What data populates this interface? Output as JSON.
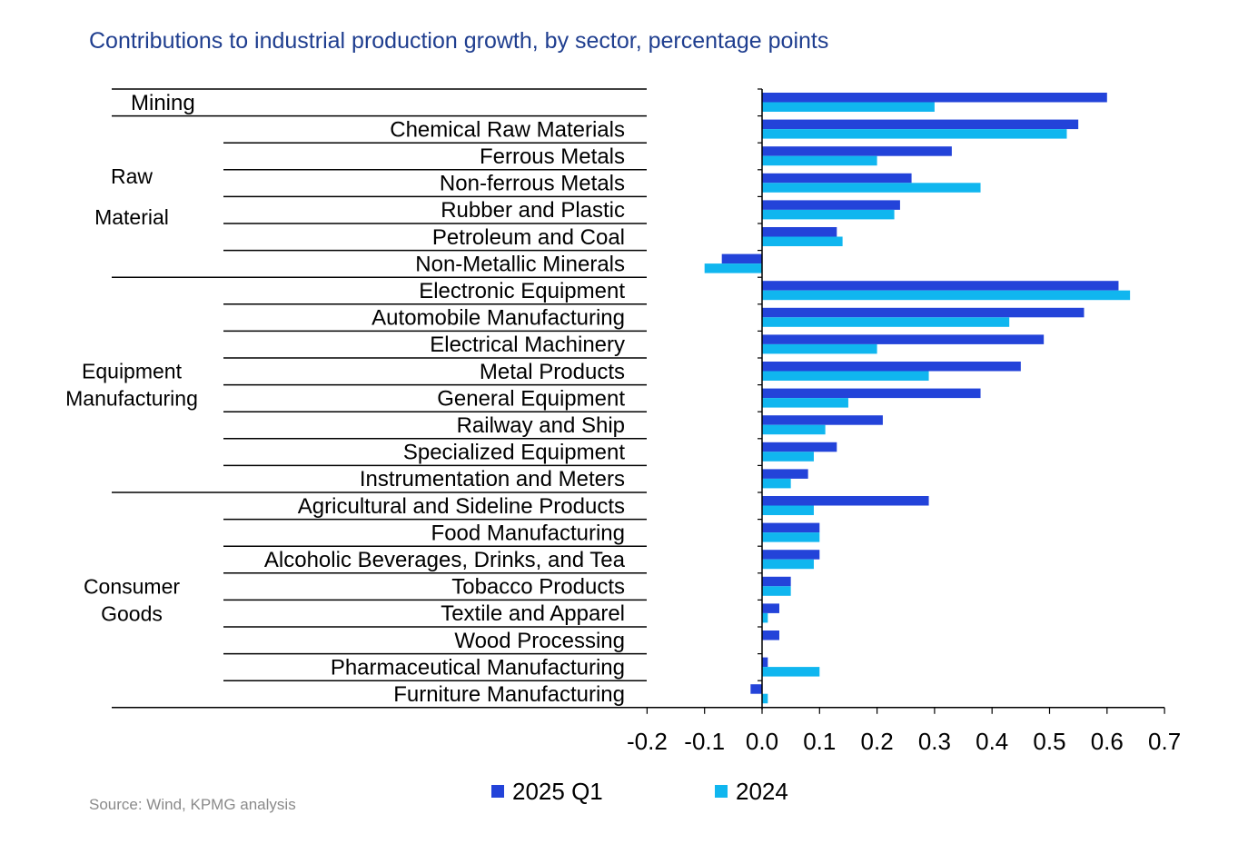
{
  "chart_data": {
    "type": "bar",
    "orientation": "horizontal",
    "title": "Contributions to industrial production growth, by sector, percentage points",
    "source": "Source: Wind, KPMG analysis",
    "xlim": [
      -0.2,
      0.7
    ],
    "xticks": [
      "-0.2",
      "-0.1",
      "0.0",
      "0.1",
      "0.2",
      "0.3",
      "0.4",
      "0.5",
      "0.6",
      "0.7"
    ],
    "legend_position": "bottom",
    "colors": {
      "2025 Q1": "#2343d9",
      "2024": "#10b6ef"
    },
    "categories": [
      "Mining",
      "Chemical Raw Materials",
      "Ferrous Metals",
      "Non-ferrous Metals",
      "Rubber and Plastic",
      "Petroleum and Coal",
      "Non-Metallic  Minerals",
      "Electronic Equipment",
      "Automobile Manufacturing",
      "Electrical Machinery",
      "Metal Products",
      "General Equipment",
      "Railway and Ship",
      "Specialized Equipment",
      "Instrumentation and Meters",
      "Agricultural and Sideline Products",
      "Food Manufacturing",
      "Alcoholic Beverages, Drinks, and Tea",
      "Tobacco Products",
      "Textile and Apparel",
      "Wood Processing",
      "Pharmaceutical Manufacturing",
      "Furniture Manufacturing"
    ],
    "groups": [
      {
        "lines": [
          "Raw",
          "Material"
        ],
        "first": 1,
        "last": 6
      },
      {
        "lines": [
          "Equipment",
          "Manufacturing"
        ],
        "first": 7,
        "last": 14
      },
      {
        "lines": [
          "Consumer",
          "Goods"
        ],
        "first": 15,
        "last": 22
      }
    ],
    "series": [
      {
        "name": "2025 Q1",
        "values": [
          0.6,
          0.55,
          0.33,
          0.26,
          0.24,
          0.13,
          -0.07,
          0.62,
          0.56,
          0.49,
          0.45,
          0.38,
          0.21,
          0.13,
          0.08,
          0.29,
          0.1,
          0.1,
          0.05,
          0.03,
          0.03,
          0.01,
          -0.02
        ]
      },
      {
        "name": "2024",
        "values": [
          0.3,
          0.53,
          0.2,
          0.38,
          0.23,
          0.14,
          -0.1,
          0.64,
          0.43,
          0.2,
          0.29,
          0.15,
          0.11,
          0.09,
          0.05,
          0.09,
          0.1,
          0.09,
          0.05,
          0.01,
          0.0,
          0.1,
          0.01
        ]
      }
    ]
  }
}
